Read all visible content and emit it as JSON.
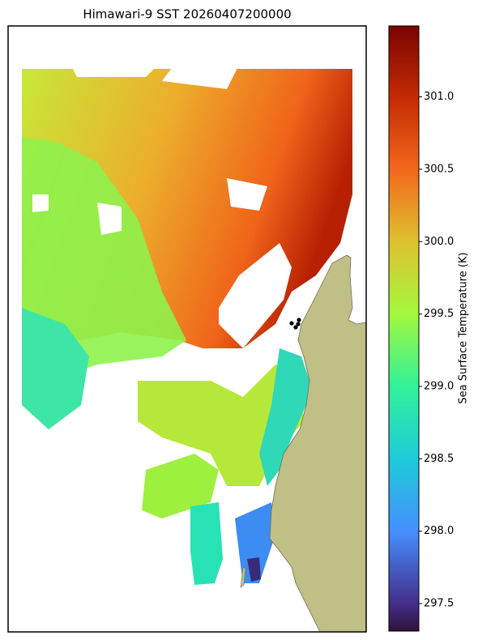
{
  "chart_data": {
    "type": "heatmap",
    "title": "Himawari-9 SST 20260407200000",
    "colorbar_label": "Sea Surface Temperature (K)",
    "clim": [
      297.31,
      301.49
    ],
    "cticks": [
      297.5,
      {
        "value": 298,
        "label": "298.0"
      },
      298.5,
      {
        "value": 299,
        "label": "299.0"
      },
      299.5,
      {
        "value": 300,
        "label": "300.0"
      },
      300.5,
      {
        "value": 301,
        "label": "301.0"
      }
    ]
  }
}
